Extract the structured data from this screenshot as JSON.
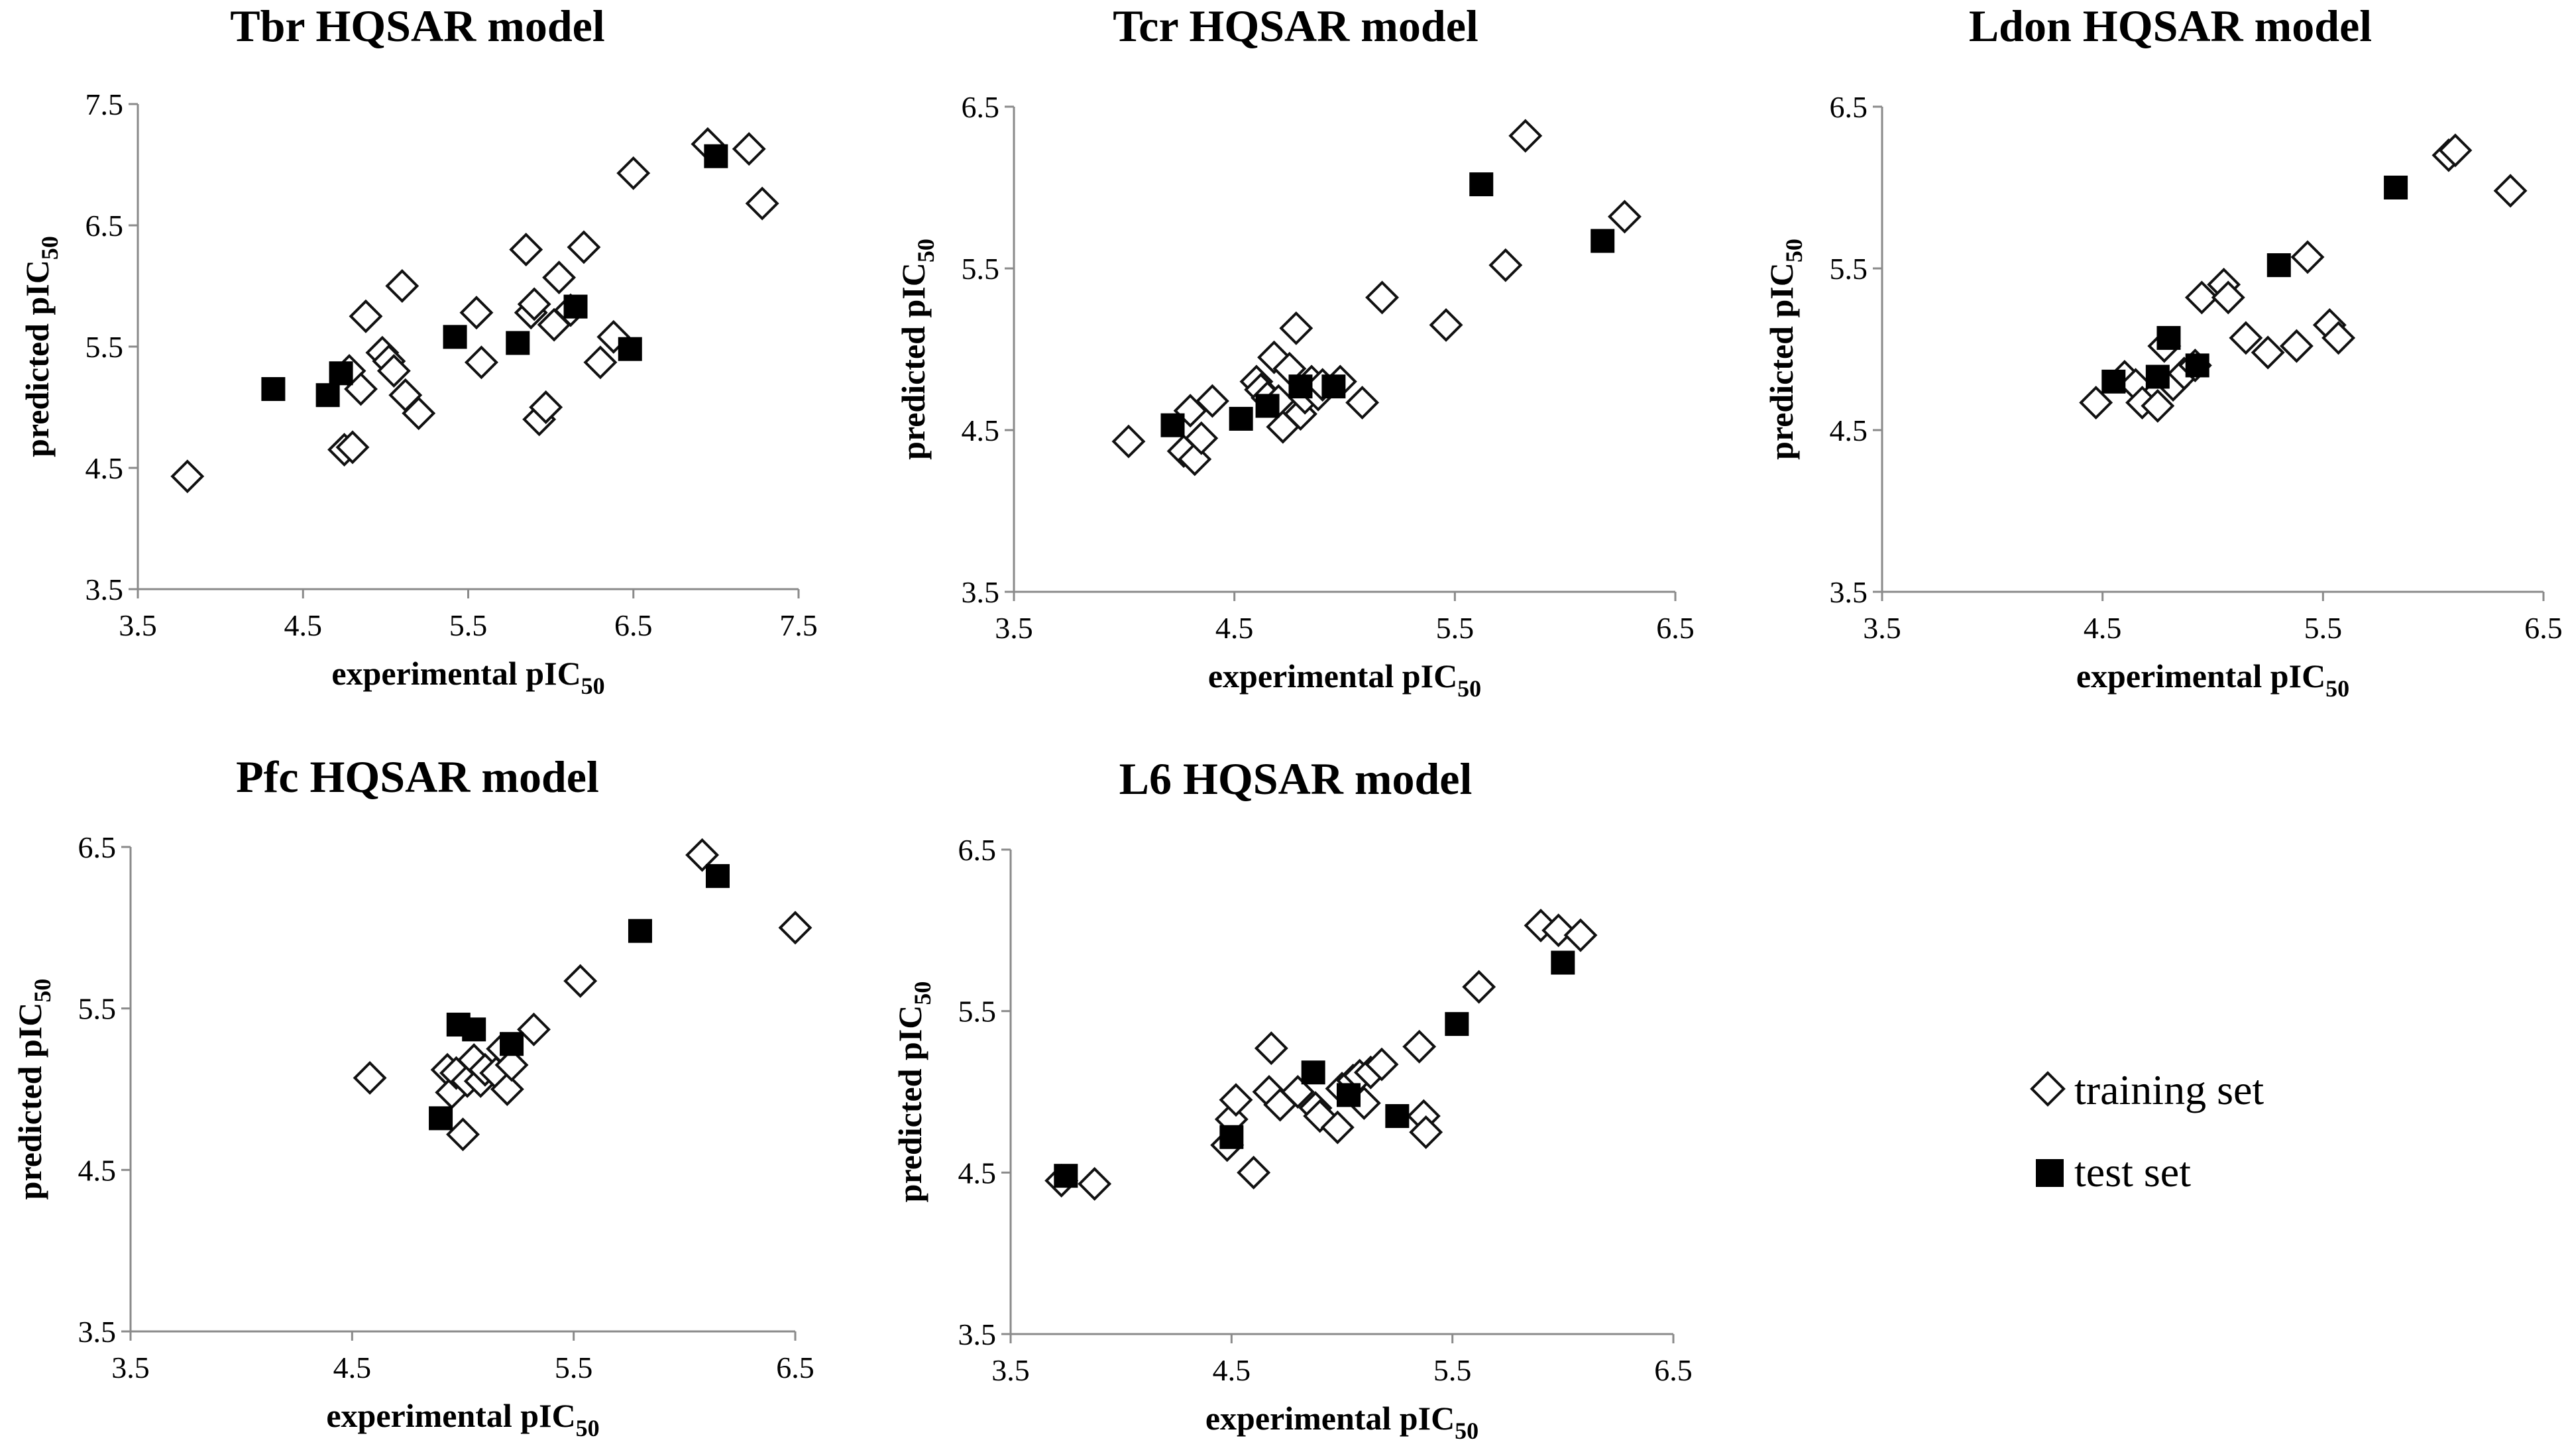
{
  "legend": {
    "training": "training set",
    "test": "test set"
  },
  "chart_data": [
    {
      "type": "scatter",
      "title": "Tbr HQSAR model",
      "xlabel": "experimental pIC",
      "ylabel": "predicted pIC",
      "subscript": "50",
      "xlim": [
        3.5,
        7.5
      ],
      "ylim": [
        3.5,
        7.5
      ],
      "xticks": [
        "3.5",
        "4.5",
        "5.5",
        "6.5",
        "7.5"
      ],
      "yticks": [
        "3.5",
        "4.5",
        "5.5",
        "6.5",
        "7.5"
      ],
      "series": [
        {
          "name": "training set",
          "x": [
            3.8,
            4.75,
            4.8,
            4.78,
            4.85,
            4.88,
            4.98,
            5.02,
            5.05,
            5.1,
            5.12,
            5.2,
            5.55,
            5.58,
            5.85,
            5.88,
            5.9,
            5.93,
            5.97,
            6.02,
            6.05,
            6.12,
            6.2,
            6.3,
            6.38,
            6.5,
            6.95,
            7.2,
            7.28
          ],
          "y": [
            4.43,
            4.65,
            4.67,
            5.3,
            5.15,
            5.75,
            5.45,
            5.38,
            5.3,
            6.0,
            5.1,
            4.95,
            5.78,
            5.37,
            6.3,
            5.78,
            5.85,
            4.9,
            5.0,
            5.68,
            6.07,
            5.8,
            6.32,
            5.37,
            5.58,
            6.93,
            7.17,
            7.13,
            6.68
          ]
        },
        {
          "name": "test set",
          "x": [
            4.32,
            4.65,
            4.73,
            5.42,
            5.8,
            6.15,
            6.48,
            7.0
          ],
          "y": [
            5.15,
            5.1,
            5.28,
            5.58,
            5.53,
            5.83,
            5.48,
            7.07
          ]
        }
      ]
    },
    {
      "type": "scatter",
      "title": "Tcr HQSAR model",
      "xlabel": "experimental pIC",
      "ylabel": "predicted pIC",
      "subscript": "50",
      "xlim": [
        3.5,
        6.5
      ],
      "ylim": [
        3.5,
        6.5
      ],
      "xticks": [
        "3.5",
        "4.5",
        "5.5",
        "6.5"
      ],
      "yticks": [
        "3.5",
        "4.5",
        "5.5",
        "6.5"
      ],
      "series": [
        {
          "name": "training set",
          "x": [
            4.02,
            4.27,
            4.3,
            4.32,
            4.35,
            4.4,
            4.6,
            4.62,
            4.65,
            4.68,
            4.7,
            4.72,
            4.75,
            4.78,
            4.8,
            4.82,
            4.85,
            4.88,
            4.9,
            4.98,
            5.08,
            5.17,
            5.46,
            5.73,
            5.82,
            6.27
          ],
          "y": [
            4.43,
            4.37,
            4.62,
            4.32,
            4.45,
            4.68,
            4.8,
            4.75,
            4.7,
            4.95,
            4.68,
            4.52,
            4.88,
            5.13,
            4.6,
            4.7,
            4.8,
            4.72,
            4.78,
            4.8,
            4.67,
            5.32,
            5.15,
            5.52,
            6.32,
            5.82
          ]
        },
        {
          "name": "test set",
          "x": [
            4.22,
            4.53,
            4.65,
            4.8,
            4.95,
            5.62,
            6.17
          ],
          "y": [
            4.53,
            4.57,
            4.65,
            4.77,
            4.77,
            6.02,
            5.67
          ]
        }
      ]
    },
    {
      "type": "scatter",
      "title": "Ldon HQSAR model",
      "xlabel": "experimental pIC",
      "ylabel": "predicted pIC",
      "subscript": "50",
      "xlim": [
        3.5,
        6.5
      ],
      "ylim": [
        3.5,
        6.5
      ],
      "xticks": [
        "3.5",
        "4.5",
        "5.5",
        "6.5"
      ],
      "yticks": [
        "3.5",
        "4.5",
        "5.5",
        "6.5"
      ],
      "series": [
        {
          "name": "training set",
          "x": [
            4.47,
            4.6,
            4.65,
            4.68,
            4.75,
            4.78,
            4.82,
            4.87,
            4.92,
            4.95,
            5.05,
            5.07,
            5.15,
            5.25,
            5.38,
            5.43,
            5.53,
            5.57,
            6.07,
            6.1,
            6.35
          ],
          "y": [
            4.67,
            4.83,
            4.78,
            4.67,
            4.65,
            5.02,
            4.78,
            4.85,
            4.9,
            5.32,
            5.4,
            5.32,
            5.07,
            4.98,
            5.02,
            5.57,
            5.15,
            5.07,
            6.2,
            6.23,
            5.98
          ]
        },
        {
          "name": "test set",
          "x": [
            4.55,
            4.75,
            4.8,
            4.93,
            5.3,
            5.83
          ],
          "y": [
            4.8,
            4.83,
            5.07,
            4.9,
            5.52,
            6.0
          ]
        }
      ]
    },
    {
      "type": "scatter",
      "title": "Pfc HQSAR model",
      "xlabel": "experimental pIC",
      "ylabel": "predicted pIC",
      "subscript": "50",
      "xlim": [
        3.5,
        6.5
      ],
      "ylim": [
        3.5,
        6.5
      ],
      "xticks": [
        "3.5",
        "4.5",
        "5.5",
        "6.5"
      ],
      "yticks": [
        "3.5",
        "4.5",
        "5.5",
        "6.5"
      ],
      "series": [
        {
          "name": "training set",
          "x": [
            4.58,
            4.93,
            4.95,
            4.97,
            5.0,
            5.02,
            5.05,
            5.08,
            5.1,
            5.15,
            5.18,
            5.2,
            5.22,
            5.32,
            5.53,
            6.08,
            6.5
          ],
          "y": [
            5.07,
            5.12,
            4.98,
            5.1,
            4.72,
            5.05,
            5.18,
            5.05,
            5.12,
            5.1,
            5.25,
            5.0,
            5.15,
            5.37,
            5.67,
            6.45,
            6.0
          ]
        },
        {
          "name": "test set",
          "x": [
            4.9,
            4.98,
            5.05,
            5.22,
            5.8,
            6.15
          ],
          "y": [
            4.82,
            5.4,
            5.37,
            5.28,
            5.98,
            6.32
          ]
        }
      ]
    },
    {
      "type": "scatter",
      "title": "L6 HQSAR model",
      "xlabel": "experimental pIC",
      "ylabel": "predicted pIC",
      "subscript": "50",
      "xlim": [
        3.5,
        6.5
      ],
      "ylim": [
        3.5,
        6.5
      ],
      "xticks": [
        "3.5",
        "4.5",
        "5.5",
        "6.5"
      ],
      "yticks": [
        "3.5",
        "4.5",
        "5.5",
        "6.5"
      ],
      "series": [
        {
          "name": "training set",
          "x": [
            3.73,
            3.88,
            4.48,
            4.5,
            4.52,
            4.6,
            4.67,
            4.68,
            4.72,
            4.8,
            4.88,
            4.9,
            4.98,
            5.0,
            5.05,
            5.08,
            5.1,
            5.13,
            5.18,
            5.35,
            5.37,
            5.38,
            5.62,
            5.9,
            5.98,
            6.08
          ],
          "y": [
            4.45,
            4.43,
            4.67,
            4.83,
            4.95,
            4.5,
            5.0,
            5.27,
            4.92,
            5.0,
            4.9,
            4.85,
            4.78,
            5.02,
            5.07,
            5.1,
            4.93,
            5.12,
            5.17,
            5.28,
            4.85,
            4.75,
            5.65,
            6.03,
            6.0,
            5.97
          ]
        },
        {
          "name": "test set",
          "x": [
            3.75,
            4.5,
            4.87,
            5.03,
            5.25,
            5.52,
            6.0
          ],
          "y": [
            4.48,
            4.72,
            5.12,
            4.98,
            4.85,
            5.42,
            5.8
          ]
        }
      ]
    }
  ]
}
